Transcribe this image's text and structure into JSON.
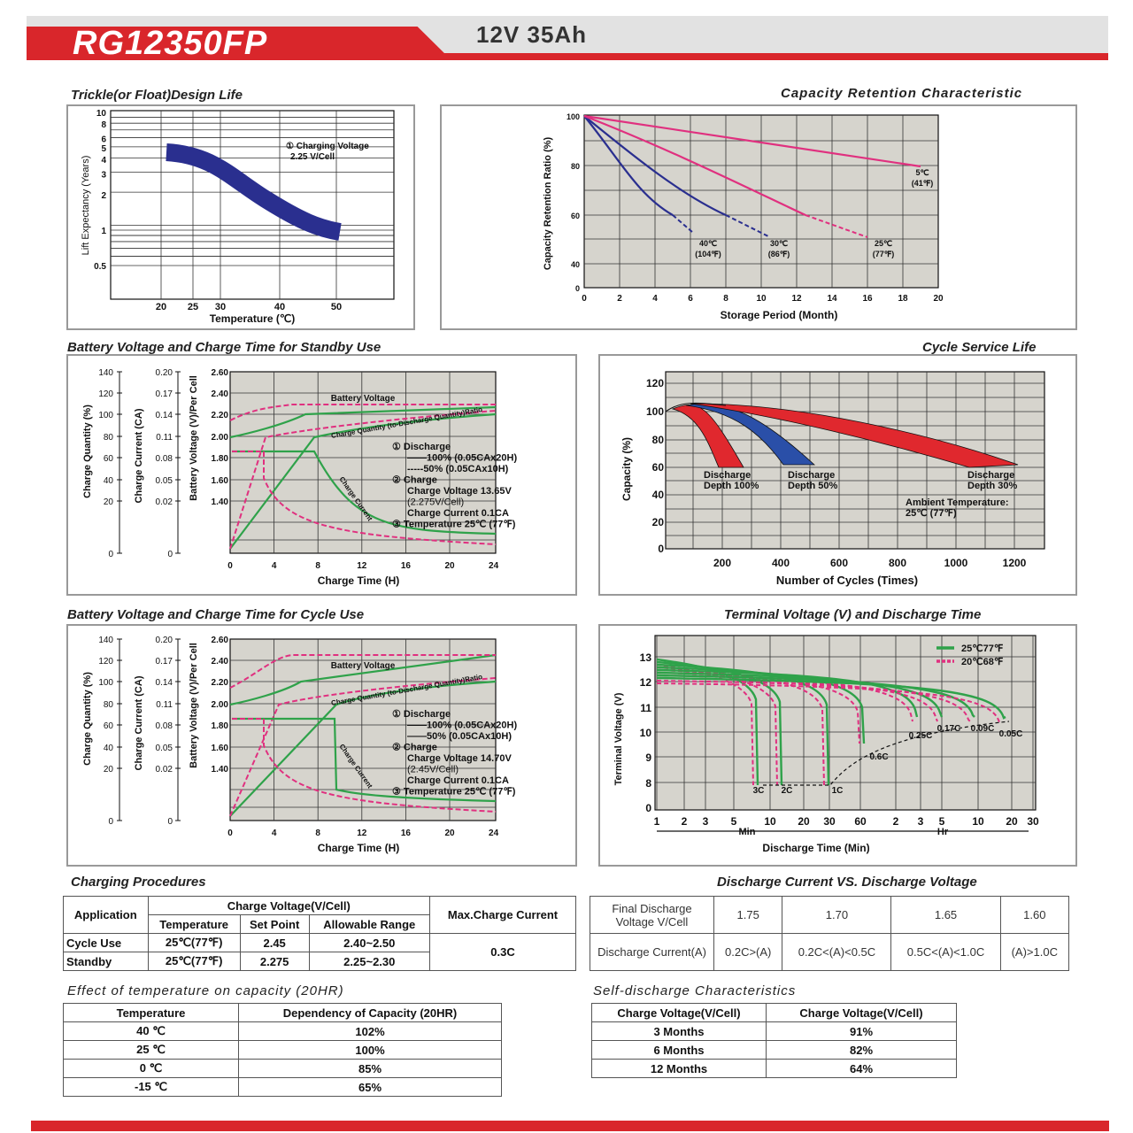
{
  "header": {
    "model": "RG12350FP",
    "spec": "12V  35Ah"
  },
  "colors": {
    "brand_red": "#d9262b",
    "green": "#2fa24a",
    "pink": "#e0307f",
    "blue": "#2a2f8f",
    "plot_bg": "#d6d4cd"
  },
  "charts": {
    "trickle": {
      "title": "Trickle(or Float)Design Life",
      "ylabel": "Lift  Expectancy (Years)",
      "xlabel": "Temperature (℃)",
      "yticks": [
        "10",
        "8",
        "6",
        "5",
        "4",
        "3",
        "2",
        "1",
        "0.5"
      ],
      "xticks": [
        "20",
        "25",
        "30",
        "40",
        "50"
      ],
      "note1": "① Charging Voltage",
      "note2": "2.25 V/Cell"
    },
    "retention": {
      "title": "Capacity  Retention  Characteristic",
      "ylabel": "Capacity Retention Ratio (%)",
      "xlabel": "Storage Period (Month)",
      "yticks": [
        "100",
        "80",
        "60",
        "40",
        "0"
      ],
      "xticks": [
        "0",
        "2",
        "4",
        "6",
        "8",
        "10",
        "12",
        "14",
        "16",
        "18",
        "20"
      ],
      "curves": [
        {
          "c": "40℃",
          "f": "(104℉)"
        },
        {
          "c": "30℃",
          "f": "(86℉)"
        },
        {
          "c": "25℃",
          "f": "(77℉)"
        },
        {
          "c": "5℃",
          "f": "(41℉)"
        }
      ]
    },
    "standby": {
      "title": "Battery Voltage and Charge Time for Standby Use",
      "y1label": "Charge Quantity (%)",
      "y2label": "Charge Current (CA)",
      "y3label": "Battery Voltage (V)/Per Cell",
      "xlabel": "Charge Time (H)",
      "y1ticks": [
        "140",
        "120",
        "100",
        "80",
        "60",
        "40",
        "20",
        "0"
      ],
      "y2ticks": [
        "0.20",
        "0.17",
        "0.14",
        "0.11",
        "0.08",
        "0.05",
        "0.02",
        "0"
      ],
      "y3ticks": [
        "2.60",
        "2.40",
        "2.20",
        "2.00",
        "1.80",
        "1.60",
        "1.40"
      ],
      "xticks": [
        "0",
        "4",
        "8",
        "12",
        "16",
        "20",
        "24"
      ],
      "lbl_voltage": "Battery Voltage",
      "lbl_quantity": "Charge Quantity (to-Discharge Quantity)Ratio",
      "lbl_current": "Charge Current",
      "notes": [
        "① Discharge",
        "——100% (0.05CAx20H)",
        "-----50% (0.05CAx10H)",
        "② Charge",
        "Charge Voltage 13.65V",
        "(2.275V/Cell)",
        "Charge Current 0.1CA",
        "③ Temperature 25℃ (77℉)"
      ]
    },
    "cycle_life": {
      "title": "Cycle Service Life",
      "ylabel": "Capacity (%)",
      "xlabel": "Number of Cycles (Times)",
      "yticks": [
        "120",
        "100",
        "80",
        "60",
        "40",
        "20",
        "0"
      ],
      "xticks": [
        "200",
        "400",
        "600",
        "800",
        "1000",
        "1200"
      ],
      "labels": [
        "Discharge",
        "Depth 100%",
        "Discharge",
        "Depth 50%",
        "Discharge",
        "Depth 30%",
        "Ambient Temperature:",
        "25℃ (77℉)"
      ]
    },
    "cycle_use": {
      "title": "Battery Voltage and Charge Time for Cycle Use",
      "y1label": "Charge Quantity (%)",
      "y2label": "Charge Current (CA)",
      "y3label": "Battery Voltage (V)/Per Cell",
      "xlabel": "Charge Time (H)",
      "y1ticks": [
        "140",
        "120",
        "100",
        "80",
        "60",
        "40",
        "20",
        "0"
      ],
      "y2ticks": [
        "0.20",
        "0.17",
        "0.14",
        "0.11",
        "0.08",
        "0.05",
        "0.02",
        "0"
      ],
      "y3ticks": [
        "2.60",
        "2.40",
        "2.20",
        "2.00",
        "1.80",
        "1.60",
        "1.40"
      ],
      "xticks": [
        "0",
        "4",
        "8",
        "12",
        "16",
        "20",
        "24"
      ],
      "lbl_voltage": "Battery Voltage",
      "lbl_quantity": "Charge Quantity (to-Discharge Quantity)Ratio",
      "lbl_current": "Charge Current",
      "notes": [
        "① Discharge",
        "——100% (0.05CAx20H)",
        "——50% (0.05CAx10H)",
        "② Charge",
        "Charge Voltage 14.70V",
        "(2.45V/Cell)",
        "Charge Current 0.1CA",
        "③ Temperature 25℃ (77℉)"
      ]
    },
    "terminal": {
      "title": "Terminal Voltage (V) and Discharge Time",
      "ylabel": "Terminal Voltage (V)",
      "xlabel": "Discharge Time (Min)",
      "yticks": [
        "13",
        "12",
        "11",
        "10",
        "9",
        "8",
        "0"
      ],
      "xticks": [
        "1",
        "2",
        "3",
        "5",
        "10",
        "20",
        "30",
        "60",
        "2",
        "3",
        "5",
        "10",
        "20",
        "30"
      ],
      "min_label": "Min",
      "hr_label": "Hr",
      "legend": [
        "25℃77℉",
        "20℃68℉"
      ],
      "rates": [
        "3C",
        "2C",
        "1C",
        "0.6C",
        "0.25C",
        "0.17C",
        "0.09C",
        "0.05C"
      ]
    }
  },
  "charging": {
    "title": "Charging Procedures",
    "h_application": "Application",
    "h_charge_voltage": "Charge Voltage(V/Cell)",
    "h_temperature": "Temperature",
    "h_set_point": "Set Point",
    "h_range": "Allowable Range",
    "h_max": "Max.Charge Current",
    "rows": [
      {
        "app": "Cycle Use",
        "temp": "25℃(77℉)",
        "set": "2.45",
        "range": "2.40~2.50"
      },
      {
        "app": "Standby",
        "temp": "25℃(77℉)",
        "set": "2.275",
        "range": "2.25~2.30"
      }
    ],
    "max": "0.3C"
  },
  "discharge": {
    "title": "Discharge Current VS. Discharge Voltage",
    "h_final": "Final Discharge Voltage V/Cell",
    "h_current": "Discharge Current(A)",
    "voltages": [
      "1.75",
      "1.70",
      "1.65",
      "1.60"
    ],
    "currents": [
      "0.2C>(A)",
      "0.2C<(A)<0.5C",
      "0.5C<(A)<1.0C",
      "(A)>1.0C"
    ]
  },
  "temp_effect": {
    "title": "Effect of temperature on capacity (20HR)",
    "h1": "Temperature",
    "h2": "Dependency of Capacity (20HR)",
    "rows": [
      [
        "40 ℃",
        "102%"
      ],
      [
        "25 ℃",
        "100%"
      ],
      [
        "0 ℃",
        "85%"
      ],
      [
        "-15 ℃",
        "65%"
      ]
    ]
  },
  "self_discharge": {
    "title": "Self-discharge Characteristics",
    "h1": "Charge Voltage(V/Cell)",
    "h2": "Charge Voltage(V/Cell)",
    "rows": [
      [
        "3 Months",
        "91%"
      ],
      [
        "6 Months",
        "82%"
      ],
      [
        "12 Months",
        "64%"
      ]
    ]
  }
}
